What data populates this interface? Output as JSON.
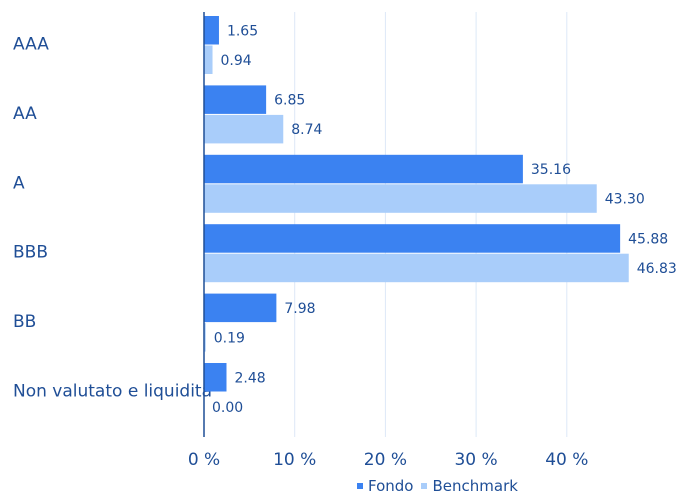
{
  "chart_data": {
    "type": "bar",
    "orientation": "horizontal",
    "categories": [
      "AAA",
      "AA",
      "A",
      "BBB",
      "BB",
      "Non valutato e liquidità"
    ],
    "series": [
      {
        "name": "Fondo",
        "color": "#3b82f1",
        "values": [
          1.65,
          6.85,
          35.16,
          45.88,
          7.98,
          2.48
        ],
        "labels": [
          "1.65",
          "6.85",
          "35.16",
          "45.88",
          "7.98",
          "2.48"
        ]
      },
      {
        "name": "Benchmark",
        "color": "#a9cdfa",
        "values": [
          0.94,
          8.74,
          43.3,
          46.83,
          0.19,
          0.0
        ],
        "labels": [
          "0.94",
          "8.74",
          "43.30",
          "46.83",
          "0.19",
          "0.00"
        ]
      }
    ],
    "xlim": [
      0,
      50
    ],
    "xticks": [
      0,
      10,
      20,
      30,
      40
    ],
    "xtick_labels": [
      "0 %",
      "10 %",
      "20 %",
      "30 %",
      "40 %"
    ],
    "grid": true,
    "legend_position": "bottom"
  },
  "legend": [
    {
      "name": "Fondo",
      "color": "#3b82f1"
    },
    {
      "name": "Benchmark",
      "color": "#a9cdfa"
    }
  ]
}
